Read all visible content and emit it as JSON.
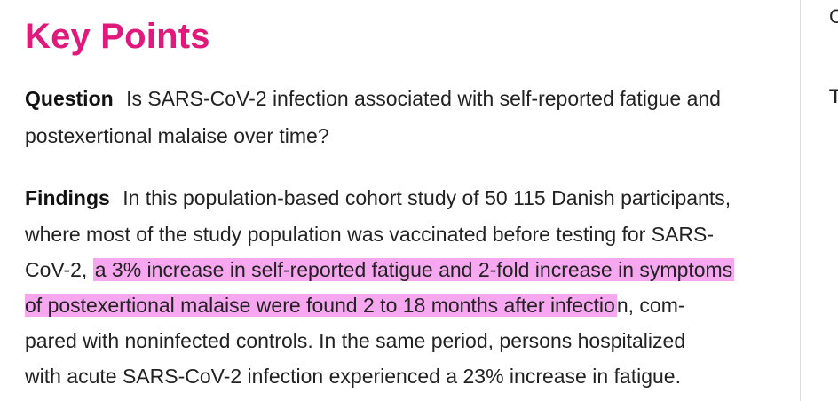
{
  "key_points": {
    "heading": "Key Points",
    "question": {
      "label": "Question",
      "line1": "Is SARS-CoV-2 infection associated with self-reported fatigue and",
      "line2": "postexertional malaise over time?"
    },
    "findings": {
      "label": "Findings",
      "line1": "In this population-based cohort study of 50 115 Danish participants,",
      "line2": "where most of the study population was vaccinated before testing for SARS-",
      "line3_plain": "CoV-2, ",
      "line3_highlight": "a 3% increase in self-reported fatigue and 2-fold increase in symptoms",
      "line4_highlight": "of postexertional malaise were found 2 to 18 months after infectio",
      "line4_plain": "n, com-",
      "line5": "pared with noninfected controls. In the same period, persons hospitalized",
      "line6": "with acute SARS-CoV-2 infection experienced a 23% increase in fatigue."
    },
    "highlight_color": "#f7a6f0",
    "heading_color": "#e0197d"
  },
  "sidebar_fragments": {
    "top": "C",
    "bottom": "T"
  }
}
